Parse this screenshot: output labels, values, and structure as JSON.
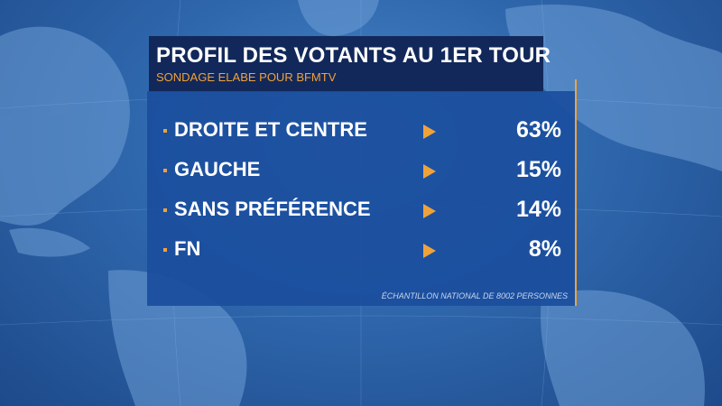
{
  "header": {
    "title": "PROFIL DES VOTANTS AU 1ER TOUR",
    "subtitle": "SONDAGE ELABE POUR BFMTV"
  },
  "chart_data": {
    "type": "table",
    "title": "PROFIL DES VOTANTS AU 1ER TOUR",
    "subtitle": "SONDAGE ELABE POUR BFMTV",
    "categories": [
      "DROITE ET CENTRE",
      "GAUCHE",
      "SANS PRÉFÉRENCE",
      "FN"
    ],
    "values": [
      "63%",
      "15%",
      "14%",
      "8%"
    ],
    "note": "ÉCHANTILLON NATIONAL DE 8002 PERSONNES"
  },
  "colors": {
    "accent": "#f0a23a",
    "panel": "#1b4f9e",
    "title_bg": "#12285a"
  }
}
